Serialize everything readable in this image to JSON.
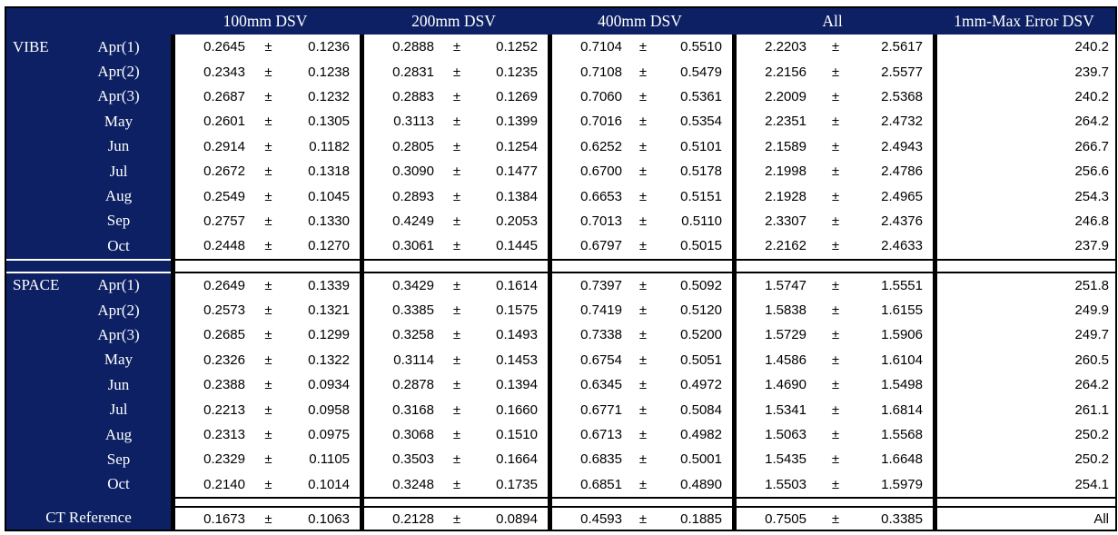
{
  "table": {
    "plus_minus": "±",
    "colors": {
      "navy": "#0d2063",
      "border": "#000000",
      "cell_bg": "#ffffff",
      "header_text": "#ffffff",
      "data_text": "#000000"
    },
    "columns": [
      "100mm DSV",
      "200mm DSV",
      "400mm DSV",
      "All",
      "1mm-Max Error DSV"
    ],
    "sections": [
      {
        "label": "VIBE",
        "rows": [
          {
            "month": "Apr(1)",
            "g": [
              [
                "0.2645",
                "0.1236"
              ],
              [
                "0.2888",
                "0.1252"
              ],
              [
                "0.7104",
                "0.5510"
              ],
              [
                "2.2203",
                "2.5617"
              ]
            ],
            "max": "240.2"
          },
          {
            "month": "Apr(2)",
            "g": [
              [
                "0.2343",
                "0.1238"
              ],
              [
                "0.2831",
                "0.1235"
              ],
              [
                "0.7108",
                "0.5479"
              ],
              [
                "2.2156",
                "2.5577"
              ]
            ],
            "max": "239.7"
          },
          {
            "month": "Apr(3)",
            "g": [
              [
                "0.2687",
                "0.1232"
              ],
              [
                "0.2883",
                "0.1269"
              ],
              [
                "0.7060",
                "0.5361"
              ],
              [
                "2.2009",
                "2.5368"
              ]
            ],
            "max": "240.2"
          },
          {
            "month": "May",
            "g": [
              [
                "0.2601",
                "0.1305"
              ],
              [
                "0.3113",
                "0.1399"
              ],
              [
                "0.7016",
                "0.5354"
              ],
              [
                "2.2351",
                "2.4732"
              ]
            ],
            "max": "264.2"
          },
          {
            "month": "Jun",
            "g": [
              [
                "0.2914",
                "0.1182"
              ],
              [
                "0.2805",
                "0.1254"
              ],
              [
                "0.6252",
                "0.5101"
              ],
              [
                "2.1589",
                "2.4943"
              ]
            ],
            "max": "266.7"
          },
          {
            "month": "Jul",
            "g": [
              [
                "0.2672",
                "0.1318"
              ],
              [
                "0.3090",
                "0.1477"
              ],
              [
                "0.6700",
                "0.5178"
              ],
              [
                "2.1998",
                "2.4786"
              ]
            ],
            "max": "256.6"
          },
          {
            "month": "Aug",
            "g": [
              [
                "0.2549",
                "0.1045"
              ],
              [
                "0.2893",
                "0.1384"
              ],
              [
                "0.6653",
                "0.5151"
              ],
              [
                "2.1928",
                "2.4965"
              ]
            ],
            "max": "254.3"
          },
          {
            "month": "Sep",
            "g": [
              [
                "0.2757",
                "0.1330"
              ],
              [
                "0.4249",
                "0.2053"
              ],
              [
                "0.7013",
                "0.5110"
              ],
              [
                "2.3307",
                "2.4376"
              ]
            ],
            "max": "246.8"
          },
          {
            "month": "Oct",
            "g": [
              [
                "0.2448",
                "0.1270"
              ],
              [
                "0.3061",
                "0.1445"
              ],
              [
                "0.6797",
                "0.5015"
              ],
              [
                "2.2162",
                "2.4633"
              ]
            ],
            "max": "237.9"
          }
        ]
      },
      {
        "label": "SPACE",
        "rows": [
          {
            "month": "Apr(1)",
            "g": [
              [
                "0.2649",
                "0.1339"
              ],
              [
                "0.3429",
                "0.1614"
              ],
              [
                "0.7397",
                "0.5092"
              ],
              [
                "1.5747",
                "1.5551"
              ]
            ],
            "max": "251.8"
          },
          {
            "month": "Apr(2)",
            "g": [
              [
                "0.2573",
                "0.1321"
              ],
              [
                "0.3385",
                "0.1575"
              ],
              [
                "0.7419",
                "0.5120"
              ],
              [
                "1.5838",
                "1.6155"
              ]
            ],
            "max": "249.9"
          },
          {
            "month": "Apr(3)",
            "g": [
              [
                "0.2685",
                "0.1299"
              ],
              [
                "0.3258",
                "0.1493"
              ],
              [
                "0.7338",
                "0.5200"
              ],
              [
                "1.5729",
                "1.5906"
              ]
            ],
            "max": "249.7"
          },
          {
            "month": "May",
            "g": [
              [
                "0.2326",
                "0.1322"
              ],
              [
                "0.3114",
                "0.1453"
              ],
              [
                "0.6754",
                "0.5051"
              ],
              [
                "1.4586",
                "1.6104"
              ]
            ],
            "max": "260.5"
          },
          {
            "month": "Jun",
            "g": [
              [
                "0.2388",
                "0.0934"
              ],
              [
                "0.2878",
                "0.1394"
              ],
              [
                "0.6345",
                "0.4972"
              ],
              [
                "1.4690",
                "1.5498"
              ]
            ],
            "max": "264.2"
          },
          {
            "month": "Jul",
            "g": [
              [
                "0.2213",
                "0.0958"
              ],
              [
                "0.3168",
                "0.1660"
              ],
              [
                "0.6771",
                "0.5084"
              ],
              [
                "1.5341",
                "1.6814"
              ]
            ],
            "max": "261.1"
          },
          {
            "month": "Aug",
            "g": [
              [
                "0.2313",
                "0.0975"
              ],
              [
                "0.3068",
                "0.1510"
              ],
              [
                "0.6713",
                "0.4982"
              ],
              [
                "1.5063",
                "1.5568"
              ]
            ],
            "max": "250.2"
          },
          {
            "month": "Sep",
            "g": [
              [
                "0.2329",
                "0.1105"
              ],
              [
                "0.3503",
                "0.1664"
              ],
              [
                "0.6835",
                "0.5001"
              ],
              [
                "1.5435",
                "1.6648"
              ]
            ],
            "max": "250.2"
          },
          {
            "month": "Oct",
            "g": [
              [
                "0.2140",
                "0.1014"
              ],
              [
                "0.3248",
                "0.1735"
              ],
              [
                "0.6851",
                "0.4890"
              ],
              [
                "1.5503",
                "1.5979"
              ]
            ],
            "max": "254.1"
          }
        ]
      }
    ],
    "footer": {
      "label": "CT Reference",
      "g": [
        [
          "0.1673",
          "0.1063"
        ],
        [
          "0.2128",
          "0.0894"
        ],
        [
          "0.4593",
          "0.1885"
        ],
        [
          "0.7505",
          "0.3385"
        ]
      ],
      "max": "All"
    }
  }
}
